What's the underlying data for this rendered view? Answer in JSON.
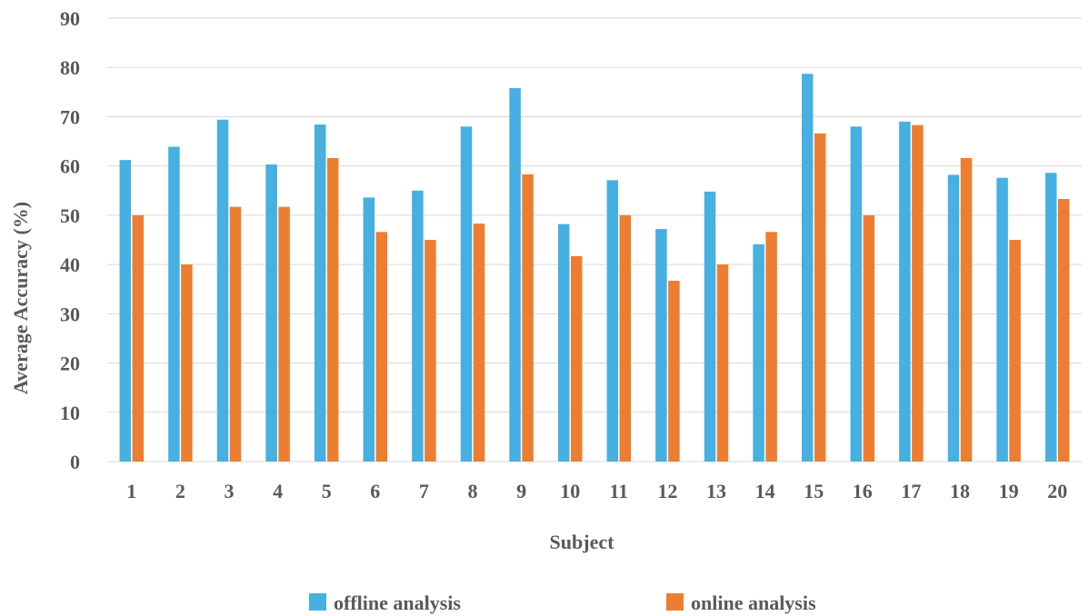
{
  "chart_data": {
    "type": "bar",
    "title": "",
    "xlabel": "Subject",
    "ylabel": "Average Accuracy (%)",
    "ylim": [
      0,
      90
    ],
    "yticks": [
      "0",
      "10",
      "20",
      "30",
      "40",
      "50",
      "60",
      "70",
      "80",
      "90"
    ],
    "categories": [
      "1",
      "2",
      "3",
      "4",
      "5",
      "6",
      "7",
      "8",
      "9",
      "10",
      "11",
      "12",
      "13",
      "14",
      "15",
      "16",
      "17",
      "18",
      "19",
      "20"
    ],
    "series": [
      {
        "name": "offline analysis",
        "color": "#45b0e1",
        "values": [
          61.2,
          63.9,
          69.4,
          60.3,
          68.4,
          53.6,
          55.0,
          68.0,
          75.8,
          48.2,
          57.1,
          47.2,
          54.8,
          44.1,
          78.7,
          68.0,
          69.0,
          58.2,
          57.6,
          58.6
        ]
      },
      {
        "name": "online analysis",
        "color": "#ed7d31",
        "values": [
          50.0,
          40.0,
          51.7,
          51.7,
          61.6,
          46.6,
          45.0,
          48.3,
          58.3,
          41.7,
          50.0,
          36.7,
          40.0,
          46.6,
          66.6,
          50.0,
          68.3,
          61.6,
          45.0,
          53.3
        ]
      }
    ],
    "grid": true,
    "legend_position": "bottom"
  }
}
